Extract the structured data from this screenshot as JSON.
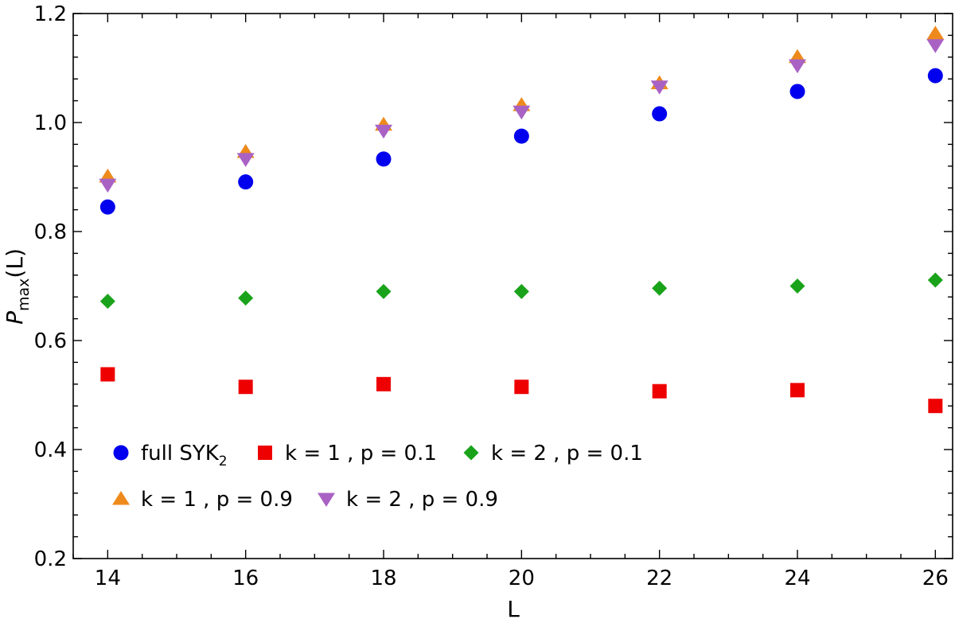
{
  "chart_data": {
    "type": "scatter",
    "title": "",
    "xlabel": "L",
    "ylabel": {
      "main": "P",
      "sub": "max",
      "tail": "(L)"
    },
    "xlim": [
      13.5,
      26.25
    ],
    "ylim": [
      0.2,
      1.2
    ],
    "x_ticks": [
      14,
      16,
      18,
      20,
      22,
      24,
      26
    ],
    "y_ticks": [
      0.2,
      0.4,
      0.6,
      0.8,
      1.0,
      1.2
    ],
    "x_tick_labels": [
      "14",
      "16",
      "18",
      "20",
      "22",
      "24",
      "26"
    ],
    "y_tick_labels": [
      "0.2",
      "0.4",
      "0.6",
      "0.8",
      "1.0",
      "1.2"
    ],
    "x": [
      14,
      16,
      18,
      20,
      22,
      24,
      26
    ],
    "grid": false,
    "legend_position": "bottom-left",
    "series": [
      {
        "name": "full SYK",
        "name_sub": "2",
        "marker": "circle",
        "color": "#0000ee",
        "values": [
          0.845,
          0.891,
          0.933,
          0.975,
          1.016,
          1.057,
          1.086
        ]
      },
      {
        "name": "k = 1 , p = 0.1",
        "marker": "square",
        "color": "#ee0000",
        "values": [
          0.538,
          0.515,
          0.52,
          0.515,
          0.507,
          0.509,
          0.48
        ]
      },
      {
        "name": "k = 2 , p = 0.1",
        "marker": "diamond",
        "color": "#1aa31a",
        "values": [
          0.672,
          0.678,
          0.69,
          0.69,
          0.696,
          0.7,
          0.711
        ]
      },
      {
        "name": "k = 1 , p = 0.9",
        "marker": "triangle-up",
        "color": "#ee8a1c",
        "values": [
          0.901,
          0.946,
          0.996,
          1.032,
          1.072,
          1.12,
          1.163
        ]
      },
      {
        "name": "k = 2 , p = 0.9",
        "marker": "triangle-down",
        "color": "#a962c4",
        "values": [
          0.886,
          0.933,
          0.985,
          1.02,
          1.066,
          1.105,
          1.142
        ]
      }
    ]
  }
}
